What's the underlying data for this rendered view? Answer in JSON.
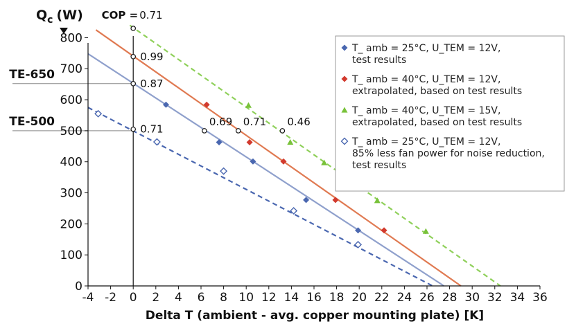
{
  "chart_data": {
    "type": "scatter",
    "y_title": "Q",
    "y_title_sub": "c",
    "y_title_unit": "(W)",
    "xlabel": "Delta T (ambient - avg. copper mounting plate) [K]",
    "xlim": [
      -4,
      36
    ],
    "ylim": [
      0,
      850
    ],
    "x_ticks": [
      -4,
      -2,
      0,
      2,
      4,
      6,
      8,
      10,
      12,
      14,
      16,
      18,
      20,
      22,
      24,
      26,
      28,
      30,
      32,
      34,
      36
    ],
    "y_ticks": [
      0,
      100,
      200,
      300,
      400,
      500,
      600,
      700,
      800
    ],
    "grid": false,
    "legend_position": "top-right",
    "series": [
      {
        "name": "T_ amb = 25°C, U_TEM = 12V, test results",
        "legend_lines": [
          "T_ amb = 25°C, U_TEM = 12V,",
          "test results"
        ],
        "marker": "filled-diamond",
        "color": "#4a67b0",
        "line_color": "#8fa0cc",
        "line_style": "solid",
        "points": [
          [
            2.9,
            584
          ],
          [
            7.6,
            463
          ],
          [
            10.6,
            401
          ],
          [
            15.3,
            277
          ],
          [
            19.9,
            179
          ]
        ],
        "fit_line": [
          [
            -4,
            748
          ],
          [
            27.5,
            0
          ]
        ]
      },
      {
        "name": "T_ amb = 40°C, U_TEM = 12V, extrapolated, based on test results",
        "legend_lines": [
          "T_ amb = 40°C, U_TEM = 12V,",
          "extrapolated, based on test results"
        ],
        "marker": "filled-diamond",
        "color": "#d23a2e",
        "line_color": "#e07a52",
        "line_style": "solid",
        "points": [
          [
            6.5,
            584
          ],
          [
            10.3,
            463
          ],
          [
            13.3,
            401
          ],
          [
            17.9,
            277
          ],
          [
            22.2,
            179
          ]
        ],
        "fit_line": [
          [
            -3.3,
            825
          ],
          [
            29,
            0
          ]
        ]
      },
      {
        "name": "T_ amb = 40°C, U_TEM = 15V, extrapolated, based on test results",
        "legend_lines": [
          "T_ amb = 40°C, U_TEM = 15V,",
          "extrapolated, based on test results"
        ],
        "marker": "filled-triangle",
        "color": "#79c23a",
        "line_color": "#8fd05a",
        "line_style": "dashed",
        "points": [
          [
            10.2,
            582
          ],
          [
            13.9,
            463
          ],
          [
            16.9,
            397
          ],
          [
            21.6,
            275
          ],
          [
            25.9,
            176
          ]
        ],
        "fit_line": [
          [
            -0.3,
            840
          ],
          [
            32.5,
            0
          ]
        ]
      },
      {
        "name": "T_ amb = 25°C, U_TEM = 12V, 85% less fan power for noise reduction, test results",
        "legend_lines": [
          "T_ amb = 25°C, U_TEM = 12V,",
          "85% less fan power for noise reduction,",
          "test results"
        ],
        "marker": "open-diamond",
        "color": "#4a67b0",
        "line_color": "#4a67b0",
        "line_style": "dashed",
        "points": [
          [
            -3.1,
            555
          ],
          [
            2.1,
            464
          ],
          [
            8.0,
            370
          ],
          [
            14.2,
            242
          ],
          [
            19.9,
            133
          ]
        ],
        "fit_line": [
          [
            -4,
            575
          ],
          [
            26.5,
            0
          ]
        ]
      }
    ],
    "cop_points": [
      {
        "x": 0,
        "y": 830,
        "label": "0.71"
      },
      {
        "x": 0,
        "y": 739,
        "label": "0.99"
      },
      {
        "x": 0,
        "y": 652,
        "label": "0.87"
      },
      {
        "x": 0,
        "y": 505,
        "label": "0.71"
      },
      {
        "x": 6.3,
        "y": 500,
        "label": "0.69"
      },
      {
        "x": 9.3,
        "y": 500,
        "label": "0.71"
      },
      {
        "x": 13.2,
        "y": 500,
        "label": "0.46"
      }
    ],
    "cop_prefix": "COP = ",
    "reference_lines": [
      {
        "label": "TE-650",
        "y": 652
      },
      {
        "label": "TE-500",
        "y": 500
      }
    ]
  }
}
